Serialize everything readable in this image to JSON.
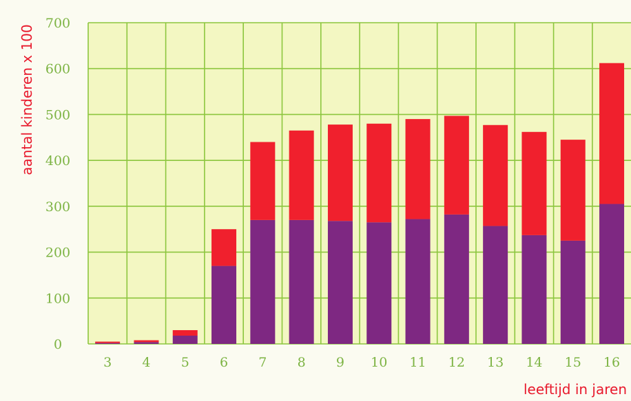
{
  "chart_data": {
    "type": "bar",
    "stacked": true,
    "categories": [
      "3",
      "4",
      "5",
      "6",
      "7",
      "8",
      "9",
      "10",
      "11",
      "12",
      "13",
      "14",
      "15",
      "16"
    ],
    "series": [
      {
        "values": [
          2,
          4,
          18,
          170,
          270,
          270,
          268,
          265,
          272,
          282,
          257,
          237,
          225,
          305
        ]
      },
      {
        "values": [
          3,
          4,
          12,
          80,
          170,
          195,
          210,
          215,
          218,
          215,
          220,
          225,
          220,
          307
        ]
      }
    ],
    "ylim": [
      0,
      700
    ],
    "yticks": [
      "0",
      "100",
      "200",
      "300",
      "400",
      "500",
      "600",
      "700"
    ],
    "ylabel": "aantal kinderen x 100",
    "xlabel": "leeftijd in jaren",
    "grid": true,
    "colors": {
      "bottom_series": "#7e2882",
      "top_series": "#f0202d",
      "plot_background": "#f3f7c2",
      "grid": "#8cc63e",
      "tick_label": "#7cb342",
      "axis_label": "#e8192c"
    }
  }
}
